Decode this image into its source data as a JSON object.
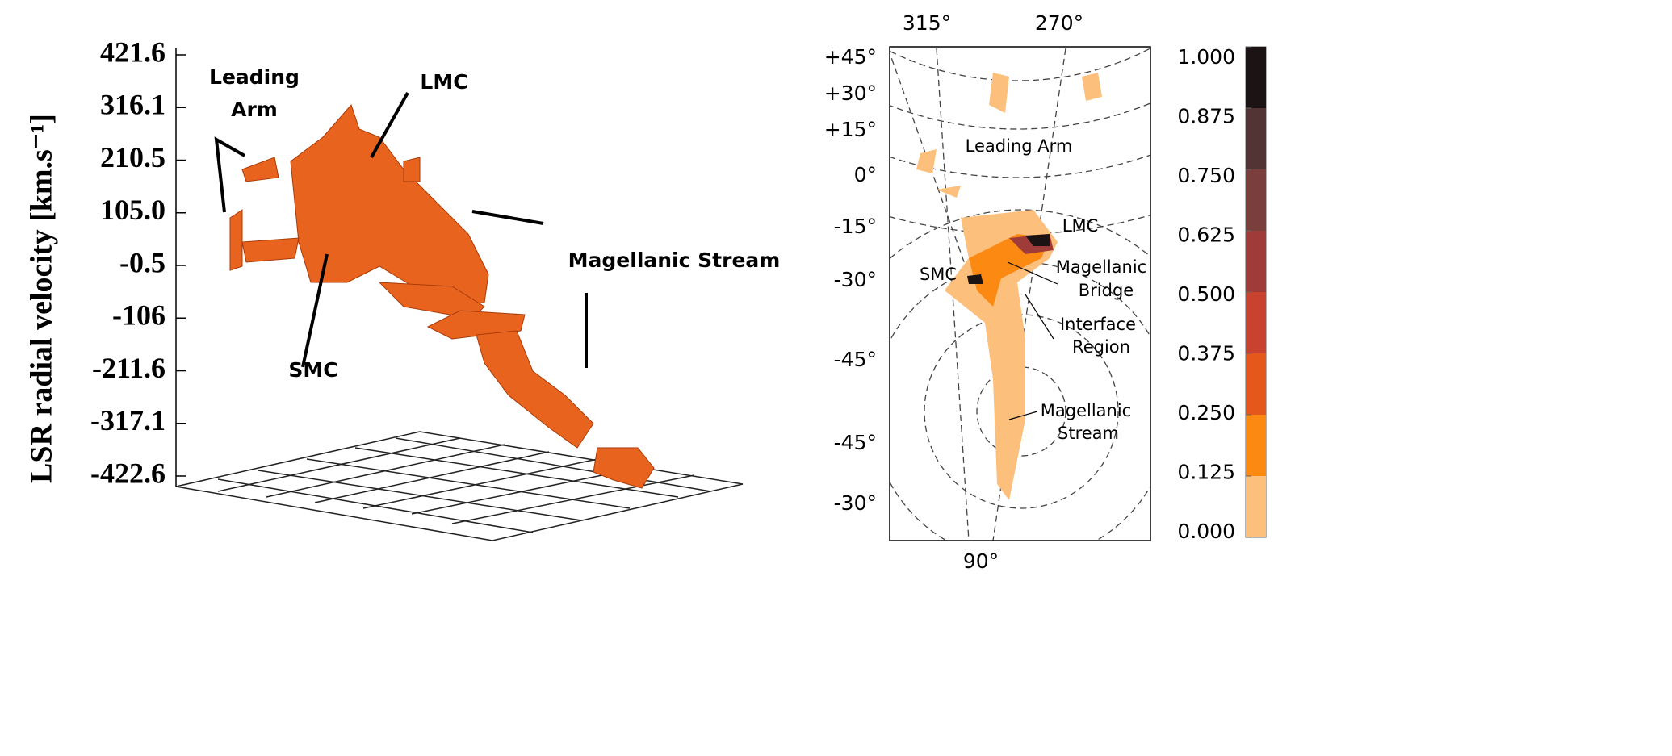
{
  "chart_data": [
    {
      "type": "isosurface",
      "ylabel": "LSR radial velocity [km.s⁻¹]",
      "ylim": [
        -422.6,
        421.6
      ],
      "yticks": [
        -422.6,
        -317.1,
        -211.6,
        -106.0,
        -0.5,
        {
          "value": 105.0,
          "label": "105.0"
        },
        210.5,
        316.1,
        421.6
      ],
      "annotations": [
        "Leading Arm",
        "LMC",
        "SMC",
        "Magellanic Stream"
      ],
      "color": "#e8641e"
    },
    {
      "type": "map",
      "top_lon_labels": [
        "315°",
        "270°"
      ],
      "bottom_lon_labels": [
        "90°"
      ],
      "lat_labels": [
        "+45°",
        "+30°",
        "+15°",
        "0°",
        "-15°",
        "-30°",
        "-45°",
        "-45°",
        "-30°"
      ],
      "annotations": [
        "Leading Arm",
        "LMC",
        "SMC",
        "Magellanic",
        "Bridge",
        "Interface",
        "Region",
        "Magellanic",
        "Stream"
      ],
      "colorbar": {
        "clim": [
          0,
          1
        ],
        "ticks": [
          {
            "value": 0,
            "label": "0.000"
          },
          {
            "value": 0.125,
            "label": "0.125"
          },
          {
            "value": 0.25,
            "label": "0.250"
          },
          {
            "value": 0.375,
            "label": "0.375"
          },
          {
            "value": 0.5,
            "label": "0.500"
          },
          {
            "value": 0.625,
            "label": "0.625"
          },
          {
            "value": 0.75,
            "label": "0.750"
          },
          {
            "value": 0.875,
            "label": "0.875"
          },
          {
            "value": 1,
            "label": "1.000"
          }
        ],
        "colors": [
          "#fdbf7c",
          "#fc8a12",
          "#e5581b",
          "#c9412f",
          "#9f3c3a",
          "#7a3e3d",
          "#513433",
          "#1c1414"
        ]
      }
    }
  ]
}
